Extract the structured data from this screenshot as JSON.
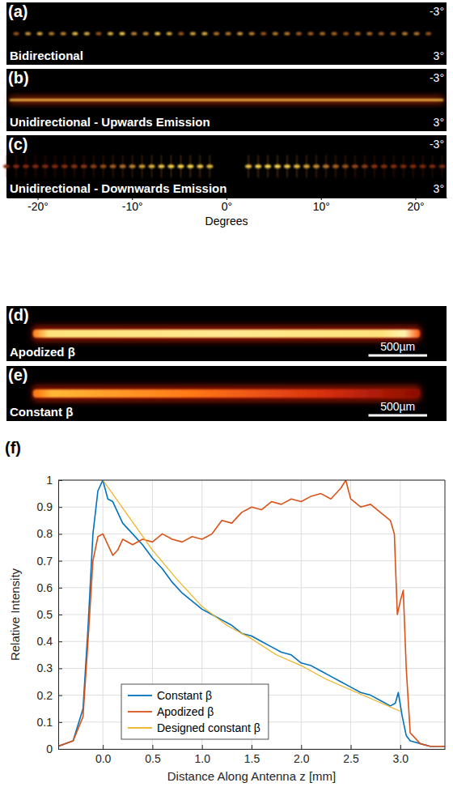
{
  "chart_data": [
    {
      "type": "image",
      "title": "(a)",
      "subtitle": "Bidirectional",
      "xlim": [
        -23.3,
        23.3
      ],
      "ylim": [
        -3,
        3
      ],
      "yticks": [
        {
          "value": -3,
          "label": "-3°"
        },
        {
          "value": 3,
          "label": "3°"
        }
      ],
      "tick_labels": "y"
    },
    {
      "type": "image",
      "title": "(b)",
      "subtitle": "Unidirectional - Upwards Emission",
      "xlim": [
        -23.3,
        23.3
      ],
      "ylim": [
        -3,
        3
      ],
      "yticks": [
        {
          "value": -3,
          "label": "-3°"
        },
        {
          "value": 3,
          "label": "3°"
        }
      ],
      "tick_labels": "y"
    },
    {
      "type": "image",
      "title": "(c)",
      "subtitle": "Unidirectional - Downwards Emission",
      "xlabel": "Degrees",
      "xlim": [
        -23.3,
        23.3
      ],
      "ylim": [
        -3,
        3
      ],
      "xticks": [
        {
          "value": -20,
          "label": "-20°"
        },
        {
          "value": -10,
          "label": "-10°"
        },
        {
          "value": 0,
          "label": "0°"
        },
        {
          "value": 10,
          "label": "10°"
        },
        {
          "value": 20,
          "label": "20°"
        }
      ],
      "yticks": [
        {
          "value": -3,
          "label": "-3°"
        },
        {
          "value": 3,
          "label": "3°"
        }
      ]
    },
    {
      "type": "image",
      "title": "(d)",
      "subtitle": "Apodized β",
      "xlim": [
        0,
        3750
      ],
      "scale_bar": 500,
      "annotations": [
        "500µm"
      ],
      "tick_labels": false
    },
    {
      "type": "image",
      "title": "(e)",
      "subtitle": "Constant β",
      "xlim": [
        0,
        3750
      ],
      "scale_bar": 500,
      "annotations": [
        "500µm"
      ],
      "tick_labels": false
    },
    {
      "type": "line",
      "title": "(f)",
      "xlabel": "Distance Along Antenna z [mm]",
      "ylabel": "Relative Intensity",
      "xlim": [
        -0.45,
        3.45
      ],
      "ylim": [
        0,
        1
      ],
      "xticks": [
        {
          "value": 0,
          "label": "0.0"
        },
        0.5,
        {
          "value": 1,
          "label": "1.0"
        },
        1.5,
        {
          "value": 2,
          "label": "2.0"
        },
        2.5,
        {
          "value": 3,
          "label": "3.0"
        }
      ],
      "yticks": [
        0,
        0.1,
        0.2,
        0.3,
        0.4,
        0.5,
        0.6,
        0.7,
        0.8,
        0.9,
        1
      ],
      "grid": true,
      "legend": "lower left",
      "series": [
        {
          "name": "Constant β",
          "color": "#0072bd",
          "x": [
            -0.45,
            -0.3,
            -0.2,
            -0.15,
            -0.1,
            -0.05,
            0,
            0.05,
            0.1,
            0.15,
            0.2,
            0.3,
            0.4,
            0.5,
            0.6,
            0.7,
            0.8,
            0.9,
            1.0,
            1.1,
            1.2,
            1.3,
            1.4,
            1.5,
            1.6,
            1.7,
            1.8,
            1.9,
            2.0,
            2.1,
            2.2,
            2.3,
            2.4,
            2.5,
            2.6,
            2.7,
            2.8,
            2.9,
            2.95,
            2.98,
            3.02,
            3.06,
            3.1,
            3.2,
            3.3,
            3.45
          ],
          "values": [
            0.01,
            0.03,
            0.15,
            0.45,
            0.8,
            0.96,
            1.0,
            0.93,
            0.92,
            0.88,
            0.84,
            0.8,
            0.76,
            0.71,
            0.67,
            0.62,
            0.58,
            0.55,
            0.52,
            0.5,
            0.48,
            0.46,
            0.43,
            0.42,
            0.4,
            0.38,
            0.36,
            0.35,
            0.32,
            0.31,
            0.29,
            0.27,
            0.25,
            0.23,
            0.21,
            0.2,
            0.18,
            0.16,
            0.17,
            0.21,
            0.12,
            0.05,
            0.03,
            0.02,
            0.01,
            0.01
          ]
        },
        {
          "name": "Apodized β",
          "color": "#d95319",
          "x": [
            -0.45,
            -0.3,
            -0.2,
            -0.15,
            -0.1,
            -0.05,
            0,
            0.05,
            0.1,
            0.15,
            0.2,
            0.3,
            0.4,
            0.5,
            0.6,
            0.7,
            0.8,
            0.9,
            1.0,
            1.1,
            1.2,
            1.3,
            1.4,
            1.5,
            1.6,
            1.7,
            1.8,
            1.9,
            2.0,
            2.1,
            2.2,
            2.3,
            2.4,
            2.45,
            2.5,
            2.6,
            2.7,
            2.8,
            2.9,
            2.94,
            2.97,
            3.0,
            3.03,
            3.06,
            3.1,
            3.2,
            3.3,
            3.45
          ],
          "values": [
            0.01,
            0.03,
            0.12,
            0.4,
            0.7,
            0.79,
            0.8,
            0.76,
            0.72,
            0.74,
            0.78,
            0.76,
            0.78,
            0.77,
            0.8,
            0.78,
            0.77,
            0.79,
            0.78,
            0.8,
            0.85,
            0.84,
            0.88,
            0.9,
            0.89,
            0.92,
            0.91,
            0.93,
            0.92,
            0.94,
            0.95,
            0.93,
            0.97,
            1.0,
            0.93,
            0.9,
            0.91,
            0.88,
            0.85,
            0.8,
            0.5,
            0.55,
            0.59,
            0.3,
            0.06,
            0.02,
            0.01,
            0.01
          ]
        },
        {
          "name": "Designed constant β",
          "color": "#edb120",
          "x": [
            0,
            0.25,
            0.5,
            0.75,
            1.0,
            1.25,
            1.5,
            1.75,
            2.0,
            2.25,
            2.5,
            2.75,
            3.0
          ],
          "values": [
            1,
            0.87,
            0.74,
            0.63,
            0.53,
            0.46,
            0.41,
            0.35,
            0.31,
            0.26,
            0.22,
            0.18,
            0.14
          ]
        }
      ]
    }
  ]
}
